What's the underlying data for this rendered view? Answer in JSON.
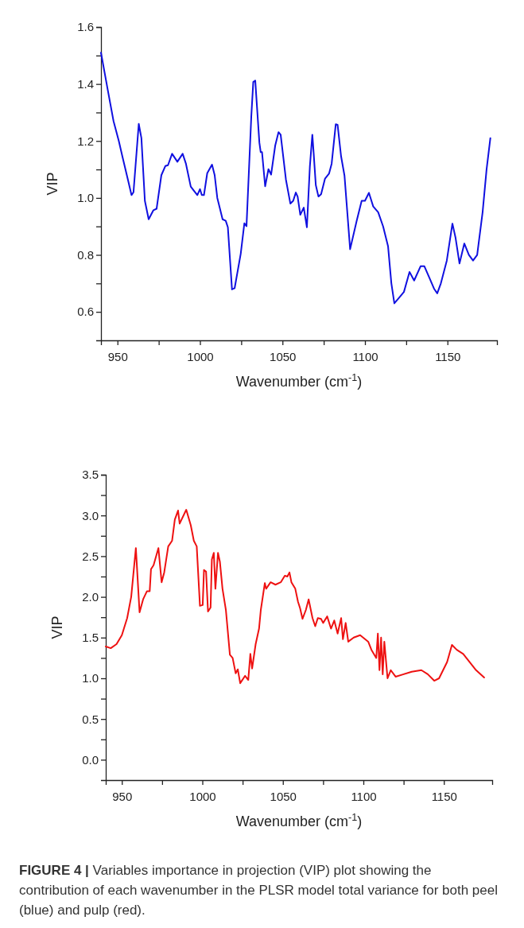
{
  "chart_data": [
    {
      "type": "line",
      "xlabel": "Wavenumber (cm$^{-1}$)",
      "ylabel": "VIP",
      "xlim": [
        940,
        1180
      ],
      "ylim": [
        0.5,
        1.6
      ],
      "xticks": [
        950,
        {
          "value": 975,
          "label": null
        },
        1000,
        {
          "value": 1025,
          "label": null
        },
        1050,
        {
          "value": 1075,
          "label": null
        },
        1100,
        {
          "value": 1125,
          "label": null
        },
        1150
      ],
      "yticks": [
        {
          "value": 0.6,
          "label": "0.6"
        },
        {
          "value": 0.7,
          "label": null
        },
        {
          "value": 0.8,
          "label": "0.8"
        },
        {
          "value": 0.9,
          "label": null
        },
        {
          "value": 1.0,
          "label": "1.0"
        },
        {
          "value": 1.1,
          "label": null
        },
        {
          "value": 1.2,
          "label": "1.2"
        },
        {
          "value": 1.3,
          "label": null
        },
        {
          "value": 1.4,
          "label": "1.4"
        },
        {
          "value": 1.5,
          "label": null
        },
        {
          "value": 1.6,
          "label": "1.6"
        }
      ],
      "grid": false,
      "marker": "none",
      "line_style": "solid",
      "series": [
        {
          "color": "#1010e0",
          "x": [
            940,
            944.4,
            947.6,
            950.8,
            953.2,
            956.5,
            958.5,
            959.7,
            962.9,
            964.5,
            966.6,
            968.9,
            971.8,
            973.7,
            976.6,
            979,
            980.6,
            983.1,
            986.3,
            989.5,
            991.5,
            994.4,
            996.8,
            998.4,
            1000,
            1001.1,
            1002.4,
            1004.4,
            1007.3,
            1008.9,
            1010.5,
            1013.7,
            1015.6,
            1016.9,
            1019.4,
            1021,
            1024.7,
            1026.9,
            1028.2,
            1031.1,
            1032.3,
            1033.5,
            1036,
            1036.8,
            1037.6,
            1039.5,
            1041.5,
            1043.1,
            1045.6,
            1047.6,
            1048.9,
            1052.1,
            1054.8,
            1056.5,
            1058.1,
            1059.2,
            1060.8,
            1062.9,
            1064.8,
            1066.6,
            1068.1,
            1068.9,
            1070.2,
            1071.8,
            1073.4,
            1075.8,
            1078.2,
            1079.8,
            1082.3,
            1083.4,
            1085.5,
            1087.6,
            1091,
            1095,
            1098,
            1100,
            1102.4,
            1105,
            1108,
            1111,
            1114,
            1116,
            1117.8,
            1120.7,
            1123.6,
            1127,
            1129.8,
            1133.7,
            1136,
            1139,
            1142,
            1143.8,
            1146,
            1149.6,
            1153,
            1154.9,
            1157.3,
            1160.2,
            1163,
            1165.5,
            1168,
            1171.3,
            1173.7,
            1176
          ],
          "values": [
            1.51,
            1.37,
            1.27,
            1.2,
            1.14,
            1.06,
            1.01,
            1.02,
            1.26,
            1.21,
            0.99,
            0.925,
            0.957,
            0.962,
            1.08,
            1.112,
            1.115,
            1.155,
            1.127,
            1.155,
            1.12,
            1.04,
            1.022,
            1.01,
            1.031,
            1.01,
            1.01,
            1.087,
            1.117,
            1.08,
            1.0,
            0.925,
            0.92,
            0.897,
            0.679,
            0.683,
            0.804,
            0.911,
            0.901,
            1.286,
            1.407,
            1.412,
            1.194,
            1.161,
            1.161,
            1.041,
            1.101,
            1.082,
            1.184,
            1.231,
            1.222,
            1.064,
            0.98,
            0.99,
            1.019,
            1.004,
            0.941,
            0.966,
            0.897,
            1.11,
            1.222,
            1.157,
            1.045,
            1.005,
            1.013,
            1.068,
            1.085,
            1.12,
            1.259,
            1.257,
            1.147,
            1.078,
            0.82,
            0.92,
            0.99,
            0.99,
            1.018,
            0.97,
            0.95,
            0.9,
            0.83,
            0.7,
            0.63,
            0.65,
            0.67,
            0.74,
            0.71,
            0.76,
            0.76,
            0.72,
            0.68,
            0.665,
            0.7,
            0.78,
            0.91,
            0.86,
            0.77,
            0.84,
            0.8,
            0.78,
            0.8,
            0.95,
            1.1,
            1.21
          ]
        }
      ]
    },
    {
      "type": "line",
      "xlabel": "Wavenumber (cm$^{-1}$)",
      "ylabel": "VIP",
      "xlim": [
        940,
        1180
      ],
      "ylim": [
        -0.25,
        3.5
      ],
      "xticks": [
        950,
        {
          "value": 975,
          "label": null
        },
        1000,
        {
          "value": 1025,
          "label": null
        },
        1050,
        {
          "value": 1075,
          "label": null
        },
        1100,
        {
          "value": 1125,
          "label": null
        },
        1150
      ],
      "yticks": [
        {
          "value": 0,
          "label": "0.0"
        },
        {
          "value": 0.25,
          "label": null
        },
        {
          "value": 0.5,
          "label": "0.5"
        },
        {
          "value": 0.75,
          "label": null
        },
        {
          "value": 1,
          "label": "1.0"
        },
        {
          "value": 1.25,
          "label": null
        },
        {
          "value": 1.5,
          "label": "1.5"
        },
        {
          "value": 1.75,
          "label": null
        },
        {
          "value": 2,
          "label": "2.0"
        },
        {
          "value": 2.25,
          "label": null
        },
        {
          "value": 2.5,
          "label": "2.5"
        },
        {
          "value": 2.75,
          "label": null
        },
        {
          "value": 3,
          "label": "3.0"
        },
        {
          "value": 3.25,
          "label": null
        },
        {
          "value": 3.5,
          "label": "3.5"
        }
      ],
      "grid": false,
      "marker": "none",
      "line_style": "solid",
      "annotations": [
        "FIGURE 4 | Variables importance in projection (VIP) plot showing the contribution of each wavenumber in the PLSR model total variance for both peel (blue) and pulp (red)."
      ],
      "series": [
        {
          "color": "#ee1111",
          "x": [
            940,
            943.1,
            946.7,
            950,
            953.3,
            955.8,
            958.7,
            961,
            963.2,
            965.6,
            967.3,
            968.1,
            969.7,
            972.7,
            974.7,
            976.3,
            978.8,
            981.2,
            982.9,
            984.9,
            985.9,
            990,
            992.8,
            994.7,
            996.5,
            998.5,
            1000.2,
            1001,
            1002.3,
            1003.5,
            1005.1,
            1005.9,
            1007.1,
            1008.1,
            1009.7,
            1010.9,
            1012.5,
            1014.6,
            1017.1,
            1018.8,
            1020.7,
            1022,
            1023.5,
            1026.5,
            1028.5,
            1029.8,
            1030.9,
            1033.1,
            1035.2,
            1036.3,
            1038.8,
            1039.6,
            1042.4,
            1045.4,
            1048.7,
            1051.2,
            1052.8,
            1054.1,
            1055.3,
            1057.7,
            1059.4,
            1060.7,
            1062.2,
            1064.3,
            1066,
            1068.4,
            1070.1,
            1071.7,
            1073.7,
            1075,
            1077.5,
            1079.9,
            1081.9,
            1084,
            1086.2,
            1087.3,
            1089,
            1090.6,
            1094,
            1098,
            1103,
            1105,
            1108,
            1109,
            1110,
            1111,
            1112,
            1113,
            1115,
            1117,
            1120,
            1125,
            1130,
            1136,
            1140,
            1144,
            1147,
            1152,
            1155,
            1158,
            1162,
            1166,
            1170,
            1175
          ],
          "values": [
            1.39,
            1.37,
            1.42,
            1.53,
            1.74,
            2.0,
            2.6,
            1.81,
            1.97,
            2.07,
            2.07,
            2.34,
            2.39,
            2.6,
            2.18,
            2.3,
            2.62,
            2.69,
            2.95,
            3.06,
            2.9,
            3.07,
            2.88,
            2.69,
            2.62,
            1.89,
            1.9,
            2.33,
            2.31,
            1.82,
            1.87,
            2.46,
            2.54,
            2.1,
            2.54,
            2.43,
            2.1,
            1.84,
            1.29,
            1.25,
            1.06,
            1.11,
            0.94,
            1.03,
            0.98,
            1.3,
            1.12,
            1.42,
            1.61,
            1.84,
            2.17,
            2.1,
            2.18,
            2.15,
            2.18,
            2.26,
            2.25,
            2.3,
            2.18,
            2.1,
            1.94,
            1.86,
            1.73,
            1.84,
            1.97,
            1.74,
            1.64,
            1.74,
            1.73,
            1.68,
            1.76,
            1.61,
            1.71,
            1.55,
            1.74,
            1.48,
            1.68,
            1.45,
            1.5,
            1.53,
            1.45,
            1.35,
            1.25,
            1.55,
            1.1,
            1.5,
            1.05,
            1.45,
            1.0,
            1.1,
            1.02,
            1.05,
            1.08,
            1.1,
            1.05,
            0.97,
            1.0,
            1.2,
            1.41,
            1.35,
            1.3,
            1.2,
            1.1,
            1.01
          ]
        }
      ]
    }
  ]
}
